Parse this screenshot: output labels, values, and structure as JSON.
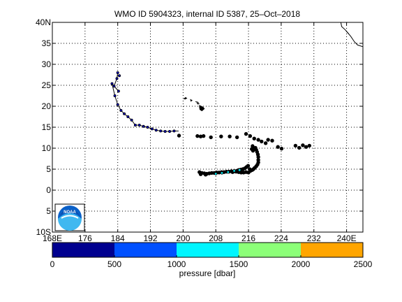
{
  "chart_data": {
    "type": "scatter",
    "title": "WMO ID 5904323, internal ID 5387, 25–Oct–2018",
    "xlim": [
      168,
      244
    ],
    "ylim": [
      -10,
      40
    ],
    "grid": true,
    "x_ticks": [
      168,
      176,
      184,
      192,
      200,
      208,
      216,
      224,
      232,
      240
    ],
    "x_tick_labels": [
      "168E",
      "176",
      "184",
      "192",
      "200",
      "208",
      "216",
      "224",
      "232",
      "240E"
    ],
    "y_ticks": [
      40,
      35,
      30,
      25,
      20,
      15,
      10,
      5,
      0,
      -5,
      -10
    ],
    "y_tick_labels": [
      "40N",
      "35",
      "30",
      "25",
      "20",
      "15",
      "10",
      "5",
      "0",
      "5",
      "10S"
    ],
    "track_line": {
      "x": [
        184.0,
        183.8,
        183.1,
        184.2,
        182.6,
        183.3,
        184.0,
        184.8,
        185.6,
        186.5,
        187.4,
        188.3,
        189.3,
        190.3,
        191.3,
        192.4,
        193.4,
        194.5,
        195.6,
        196.7,
        197.8,
        198.9
      ],
      "y": [
        28.0,
        26.6,
        24.8,
        23.6,
        25.4,
        22.5,
        20.4,
        19.0,
        18.2,
        17.5,
        16.7,
        15.5,
        15.5,
        15.2,
        15.0,
        14.6,
        14.3,
        14.1,
        14.0,
        14.0,
        14.1,
        14.1
      ]
    },
    "profiles_shallow": {
      "x": [
        184.0,
        183.8,
        184.4,
        183.1,
        184.2,
        182.6,
        183.3,
        184.0,
        184.8,
        185.6,
        186.5,
        187.4,
        188.3,
        189.3,
        190.3,
        191.3,
        192.4,
        193.4,
        194.5,
        195.6,
        196.7,
        197.8
      ],
      "y": [
        28.0,
        26.6,
        27.3,
        24.8,
        23.6,
        25.4,
        22.5,
        20.4,
        19.0,
        18.2,
        17.5,
        16.7,
        15.5,
        15.5,
        15.2,
        15.0,
        14.6,
        14.3,
        14.1,
        14.0,
        14.0,
        14.1
      ]
    },
    "profiles_deep": {
      "x": [
        199.0,
        203.5,
        204.3,
        205.0,
        206.8,
        209.3,
        213.2,
        211.4,
        215.4,
        216.4,
        217.4,
        218.4,
        219.2,
        220.2,
        220.8,
        221.8,
        217.0,
        216.8,
        217.1,
        217.4,
        217.7,
        217.9,
        218.1,
        218.3,
        218.4,
        218.4,
        218.4,
        218.2,
        217.9,
        217.5,
        217.2,
        216.9,
        216.5,
        223.2,
        224.1,
        227.5,
        228.4,
        229.3,
        230.1,
        230.9,
        204.0,
        204.6,
        205.2,
        205.8,
        206.4,
        207.0,
        207.6,
        208.2,
        208.8,
        209.4,
        210.0,
        210.6,
        211.2,
        211.8,
        212.4,
        213.0,
        213.6,
        214.2,
        214.8,
        215.4,
        216.0,
        216.3,
        215.9,
        215.5,
        215.1,
        214.6,
        214.1,
        213.6,
        213.1,
        212.6,
        212.1,
        204.3,
        205.5
      ],
      "y": [
        13.0,
        12.9,
        12.8,
        12.9,
        12.6,
        12.8,
        12.6,
        12.8,
        13.4,
        12.9,
        12.3,
        12.0,
        11.6,
        11.2,
        12.0,
        11.8,
        10.5,
        9.8,
        9.4,
        9.8,
        10.1,
        9.6,
        9.1,
        8.5,
        7.9,
        7.2,
        6.6,
        6.1,
        5.7,
        5.3,
        5.0,
        4.8,
        4.6,
        10.3,
        9.9,
        10.6,
        10.1,
        10.7,
        10.3,
        10.6,
        4.3,
        4.1,
        4.0,
        3.9,
        4.0,
        4.1,
        4.1,
        4.2,
        4.2,
        4.3,
        4.3,
        4.4,
        4.4,
        4.5,
        4.5,
        4.4,
        4.3,
        4.2,
        4.2,
        4.3,
        4.2,
        5.0,
        5.8,
        5.5,
        5.2,
        5.0,
        4.9,
        4.8,
        4.6,
        4.5,
        4.3,
        3.8,
        3.7
      ]
    },
    "profiles_mid": {
      "x": [
        209.5,
        211.0,
        212.5,
        213.8,
        208.0
      ],
      "y": [
        4.1,
        4.3,
        4.6,
        4.8,
        3.9
      ]
    },
    "colorbar": {
      "label": "pressure [dbar]",
      "tick_values": [
        0,
        500,
        1000,
        1500,
        2000,
        2500
      ],
      "tick_labels": [
        "0",
        "500",
        "1000",
        "1500",
        "2000",
        "2500"
      ],
      "range": [
        0,
        2500
      ],
      "colors": [
        "#00008f",
        "#0050ff",
        "#00f5ff",
        "#8cff78",
        "#ffa500"
      ]
    },
    "marker_colors": {
      "outline": "#000000",
      "shallow_fill": "#0000cc",
      "mid_fill": "#00e5ee",
      "deep_fill": "#000000"
    },
    "land_color": "#000000"
  },
  "logo": {
    "text": "NOAA",
    "icon": "noaa-logo"
  }
}
